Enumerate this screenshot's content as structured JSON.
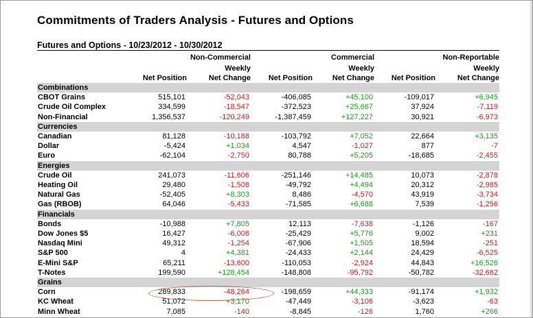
{
  "title": "Commitments of Traders Analysis - Futures and Options",
  "subtitle": "Futures and Options - 10/23/2012 - 10/30/2012",
  "group_headers": [
    "Non-Commercial",
    "Commercial",
    "Non-Reportable"
  ],
  "col_headers": [
    {
      "a": "",
      "b": "Net Position"
    },
    {
      "a": "Weekly",
      "b": "Net Change"
    },
    {
      "a": "",
      "b": "Net Position"
    },
    {
      "a": "Weekly",
      "b": "Net Change"
    },
    {
      "a": "",
      "b": "Net Position"
    },
    {
      "a": "Weekly",
      "b": "Net Change"
    }
  ],
  "colors": {
    "positive": "#1a9a1a",
    "negative": "#d0161c",
    "group_bg": "#d4d4d4",
    "highlight": "#c75a4a"
  },
  "groups": [
    {
      "name": "Combinations",
      "rows": [
        {
          "label": "CBOT Grains",
          "v": [
            "515,101",
            "-52,043",
            "-406,085",
            "+45,100",
            "-109,017",
            "+6,945"
          ]
        },
        {
          "label": "Crude Oil Complex",
          "v": [
            "334,599",
            "-18,547",
            "-372,523",
            "+25,667",
            "37,924",
            "-7,119"
          ]
        },
        {
          "label": "Non-Financial",
          "v": [
            "1,356,537",
            "-120,249",
            "-1,387,459",
            "+127,227",
            "30,921",
            "-6,973"
          ]
        }
      ]
    },
    {
      "name": "Currencies",
      "rows": [
        {
          "label": "Canadian",
          "v": [
            "81,128",
            "-10,188",
            "-103,792",
            "+7,052",
            "22,664",
            "+3,135"
          ]
        },
        {
          "label": "Dollar",
          "v": [
            "-5,424",
            "+1,034",
            "4,547",
            "-1,027",
            "877",
            "-7"
          ]
        },
        {
          "label": "Euro",
          "v": [
            "-62,104",
            "-2,750",
            "80,788",
            "+5,205",
            "-18,685",
            "-2,455"
          ]
        }
      ]
    },
    {
      "name": "Energies",
      "rows": [
        {
          "label": "Crude Oil",
          "v": [
            "241,073",
            "-11,606",
            "-251,146",
            "+14,485",
            "10,073",
            "-2,878"
          ]
        },
        {
          "label": "Heating Oil",
          "v": [
            "29,480",
            "-1,508",
            "-49,792",
            "+4,494",
            "20,312",
            "-2,985"
          ]
        },
        {
          "label": "Natural Gas",
          "v": [
            "-52,405",
            "+8,303",
            "8,486",
            "-4,570",
            "43,919",
            "-3,734"
          ]
        },
        {
          "label": "Gas (RBOB)",
          "v": [
            "64,046",
            "-5,433",
            "-71,585",
            "+6,688",
            "7,539",
            "-1,256"
          ]
        }
      ]
    },
    {
      "name": "Financials",
      "rows": [
        {
          "label": "Bonds",
          "v": [
            "-10,988",
            "+7,805",
            "12,113",
            "-7,638",
            "-1,126",
            "-167"
          ]
        },
        {
          "label": "Dow Jones $5",
          "v": [
            "16,427",
            "-6,008",
            "-25,429",
            "+5,776",
            "9,002",
            "+231"
          ]
        },
        {
          "label": "Nasdaq Mini",
          "v": [
            "49,312",
            "-1,254",
            "-67,906",
            "+1,505",
            "18,594",
            "-251"
          ]
        },
        {
          "label": "S&P 500",
          "v": [
            "4",
            "+4,381",
            "-24,433",
            "+2,144",
            "24,429",
            "-6,525"
          ]
        },
        {
          "label": "E-Mini S&P",
          "v": [
            "65,211",
            "-13,600",
            "-110,053",
            "-2,924",
            "44,843",
            "+16,526"
          ]
        },
        {
          "label": "T-Notes",
          "v": [
            "199,590",
            "+128,454",
            "-148,808",
            "-95,792",
            "-50,782",
            "-32,662"
          ]
        }
      ]
    },
    {
      "name": "Grains",
      "rows": [
        {
          "label": "Corn",
          "v": [
            "289,833",
            "-48,264",
            "-198,659",
            "+44,333",
            "-91,174",
            "+1,932"
          ]
        },
        {
          "label": "KC Wheat",
          "v": [
            "51,072",
            "+3,170",
            "-47,449",
            "-3,106",
            "-3,623",
            "-63"
          ]
        },
        {
          "label": "Minn Wheat",
          "v": [
            "7,085",
            "-140",
            "-8,845",
            "-126",
            "1,760",
            "+266"
          ]
        }
      ]
    }
  ]
}
